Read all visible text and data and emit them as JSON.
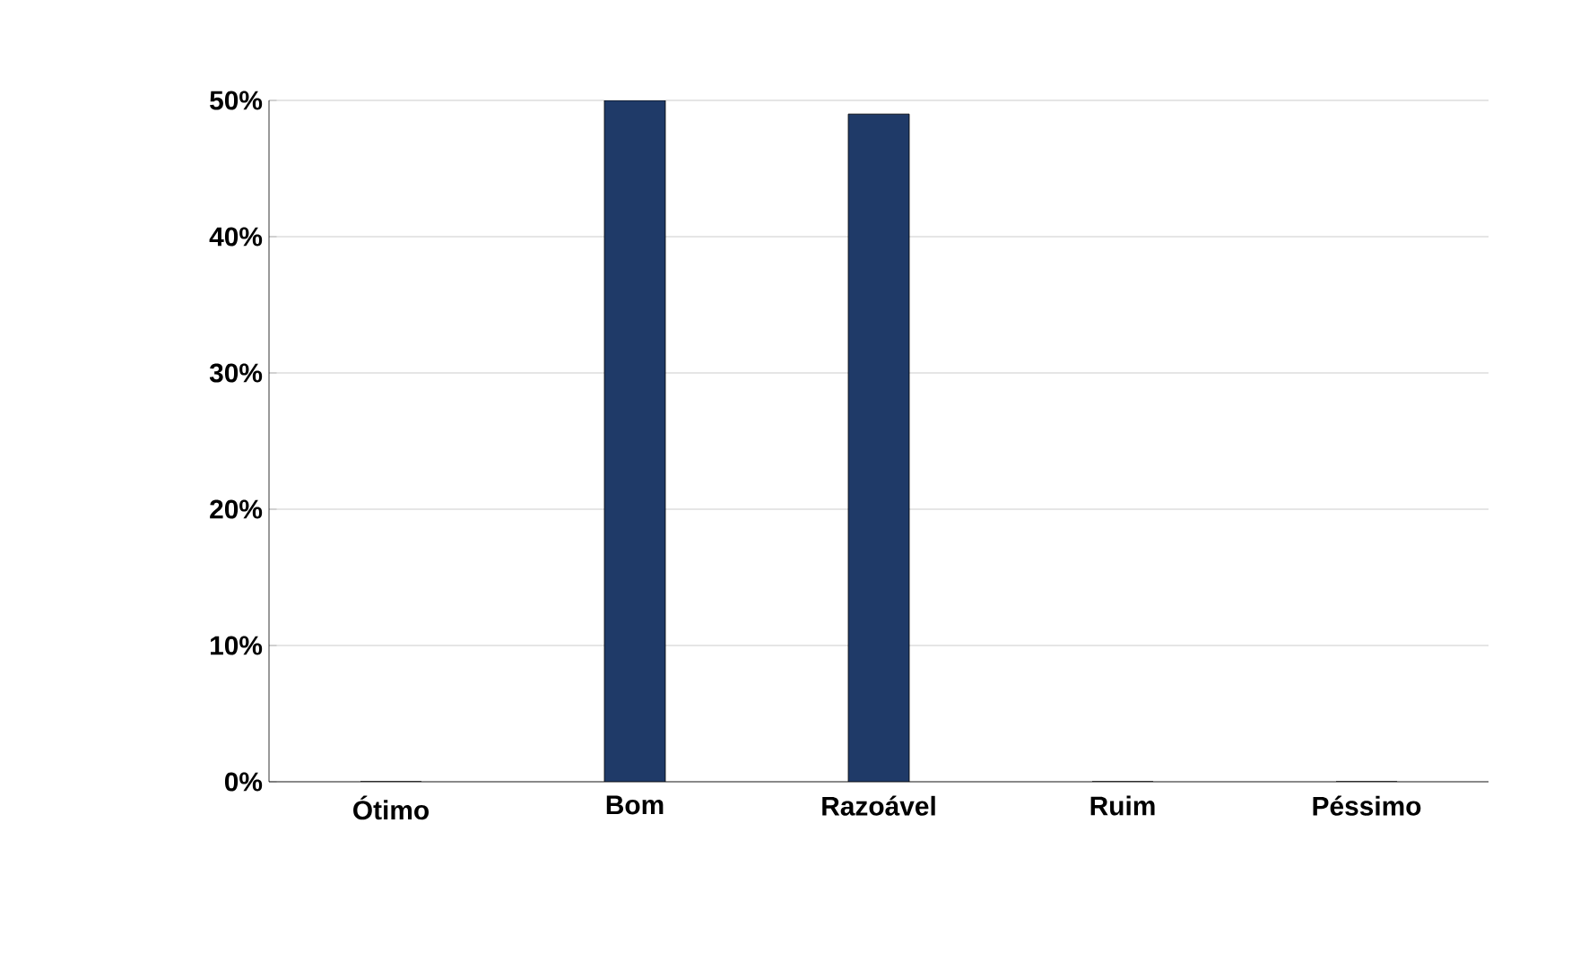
{
  "chart_data": {
    "type": "bar",
    "categories": [
      "Ótimo",
      "Bom",
      "Razoável",
      "Ruim",
      "Péssimo"
    ],
    "values": [
      0,
      50,
      49,
      0,
      0
    ],
    "color": "#1f3a68",
    "ylim": [
      0,
      50
    ],
    "yticks": [
      {
        "value": 0,
        "label": "0%"
      },
      {
        "value": 10,
        "label": "10%"
      },
      {
        "value": 20,
        "label": "20%"
      },
      {
        "value": 30,
        "label": "30%"
      },
      {
        "value": 40,
        "label": "40%"
      },
      {
        "value": 50,
        "label": "50%"
      }
    ],
    "grid": "y"
  }
}
